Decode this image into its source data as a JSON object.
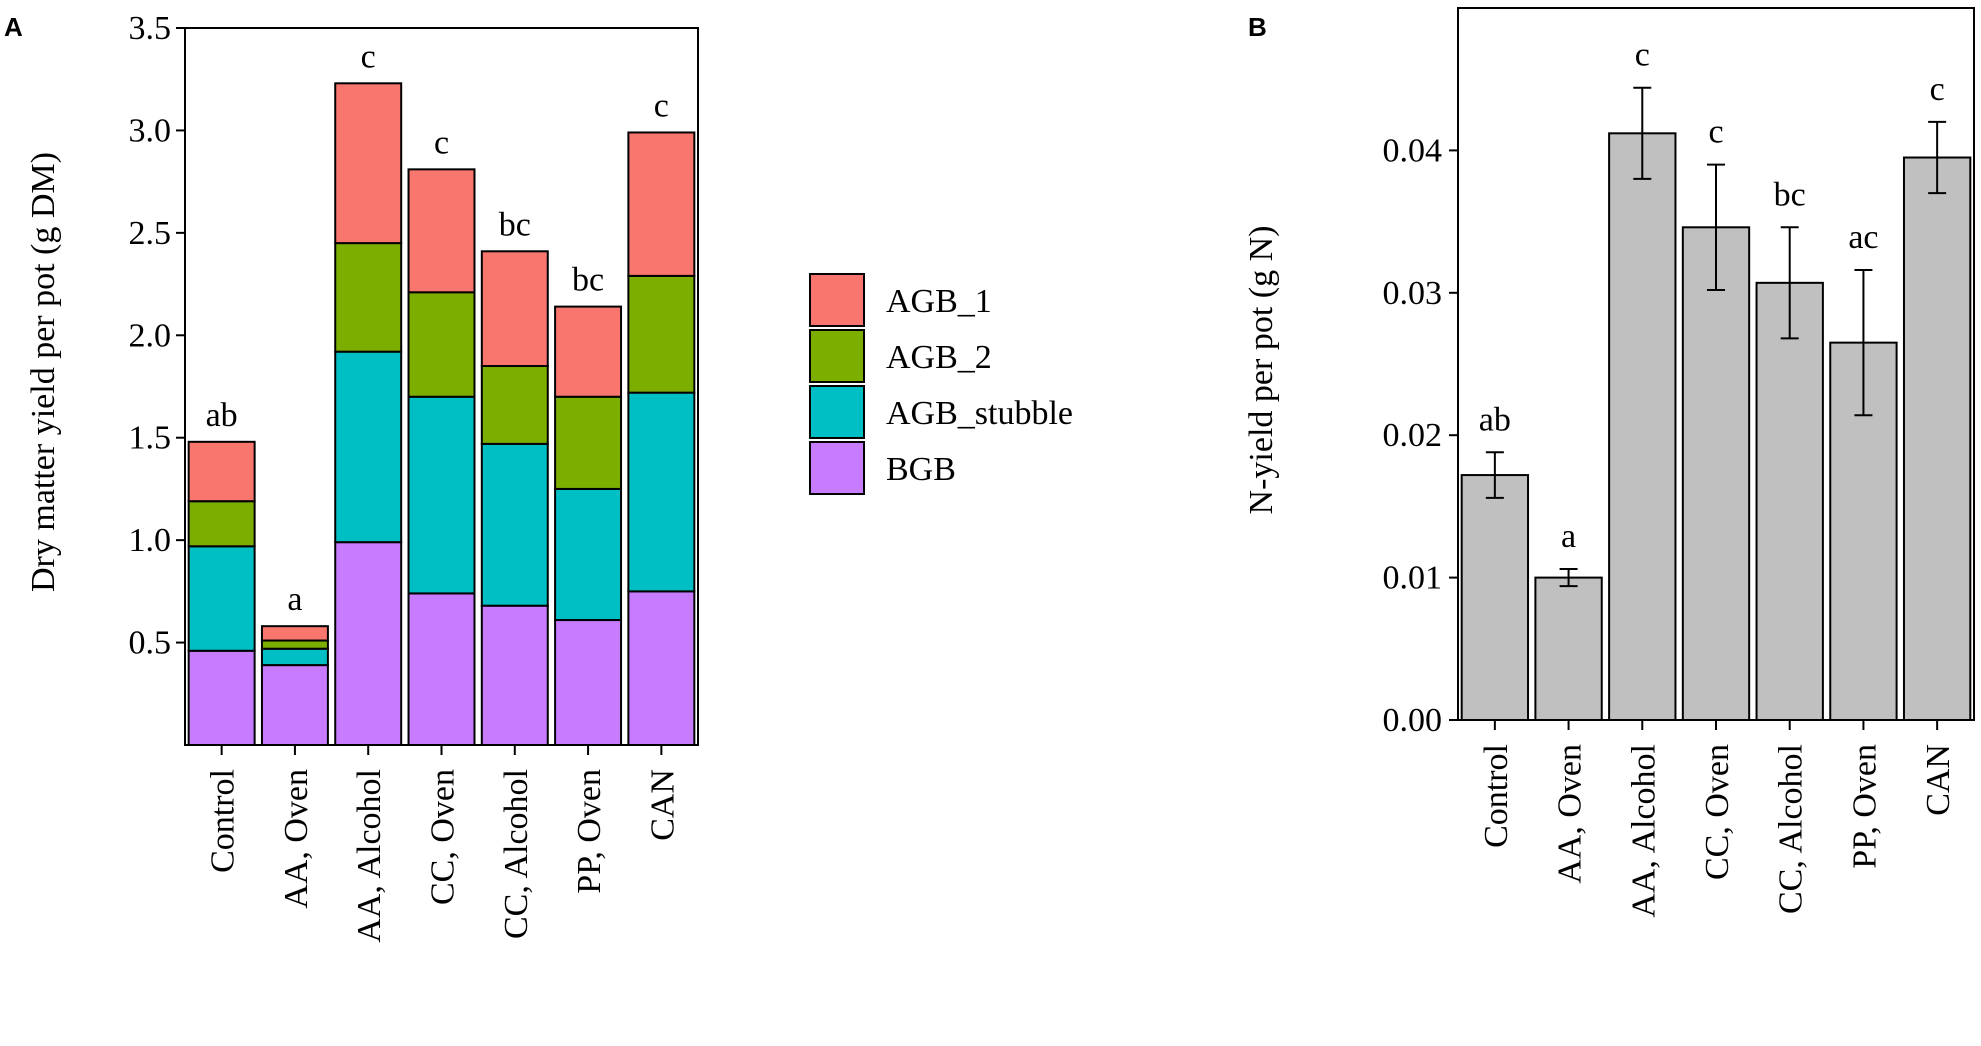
{
  "chart_data": [
    {
      "panel_label": "A",
      "type": "stacked-bar",
      "title": "",
      "xlabel": "",
      "ylabel": "Dry matter yield per pot (g DM)",
      "ylim": [
        0,
        3.5
      ],
      "yticks": [
        "0.5",
        "1.0",
        "1.5",
        "2.0",
        "2.5",
        "3.0",
        "3.5"
      ],
      "categories": [
        "Control",
        "AA, Oven",
        "AA, Alcohol",
        "CC, Oven",
        "CC, Alcohol",
        "PP, Oven",
        "CAN"
      ],
      "series": [
        {
          "name": "BGB",
          "color": "#c77cff",
          "values": [
            0.46,
            0.39,
            0.99,
            0.74,
            0.68,
            0.61,
            0.75
          ]
        },
        {
          "name": "AGB_stubble",
          "color": "#00bfc4",
          "values": [
            0.51,
            0.08,
            0.93,
            0.96,
            0.79,
            0.64,
            0.97
          ]
        },
        {
          "name": "AGB_2",
          "color": "#7cae00",
          "values": [
            0.22,
            0.04,
            0.53,
            0.51,
            0.38,
            0.45,
            0.57
          ]
        },
        {
          "name": "AGB_1",
          "color": "#f8766d",
          "values": [
            0.29,
            0.07,
            0.78,
            0.6,
            0.56,
            0.44,
            0.7
          ]
        }
      ],
      "legend": {
        "placement": "right",
        "order": [
          "AGB_1",
          "AGB_2",
          "AGB_stubble",
          "BGB"
        ]
      },
      "significance_letters": [
        "ab",
        "a",
        "c",
        "c",
        "bc",
        "bc",
        "c"
      ],
      "grid": false
    },
    {
      "panel_label": "B",
      "type": "bar",
      "title": "",
      "xlabel": "",
      "ylabel": "N-yield per pot (g N)",
      "ylim": [
        0,
        0.05
      ],
      "yticks": [
        "0.00",
        "0.01",
        "0.02",
        "0.03",
        "0.04"
      ],
      "categories": [
        "Control",
        "AA, Oven",
        "AA, Alcohol",
        "CC, Oven",
        "CC, Alcohol",
        "PP, Oven",
        "CAN"
      ],
      "values": [
        0.0172,
        0.01,
        0.0412,
        0.0346,
        0.0307,
        0.0265,
        0.0395
      ],
      "errors": [
        0.0016,
        0.0006,
        0.0032,
        0.0044,
        0.0039,
        0.0051,
        0.0025
      ],
      "bar_color": "#c0c0c0",
      "significance_letters": [
        "ab",
        "a",
        "c",
        "c",
        "bc",
        "ac",
        "c"
      ],
      "grid": false
    }
  ]
}
